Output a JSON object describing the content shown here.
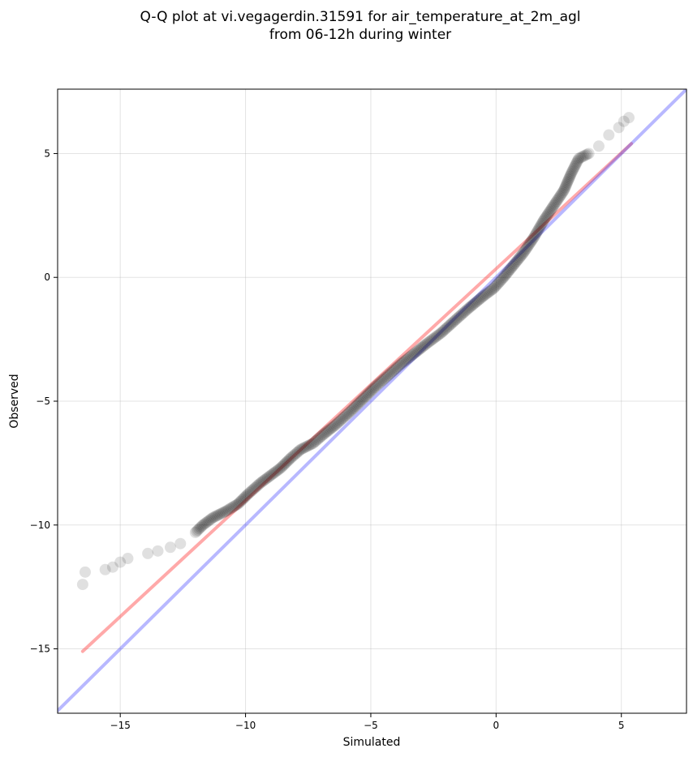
{
  "chart_data": {
    "type": "scatter",
    "title_line1": "Q-Q plot at vi.vegagerdin.31591 for air_temperature_at_2m_agl",
    "title_line2": "from 06-12h during winter",
    "xlabel": "Simulated",
    "ylabel": "Observed",
    "xlim": [
      -17.5,
      7.6
    ],
    "ylim": [
      -17.6,
      7.6
    ],
    "xticks": [
      -15,
      -10,
      -5,
      0,
      5
    ],
    "yticks": [
      5,
      0,
      -5,
      -10,
      -15
    ],
    "xtick_labels": [
      "−15",
      "−10",
      "−5",
      "0",
      "5"
    ],
    "ytick_labels": [
      "5",
      "0",
      "−5",
      "−10",
      "−15"
    ],
    "grid": true,
    "series": [
      {
        "color": "#000000",
        "opacity": 0.12,
        "anchors": [
          [
            -16.5,
            -12.4
          ],
          [
            -16.4,
            -11.9
          ],
          [
            -15.6,
            -11.8
          ],
          [
            -15.3,
            -11.7
          ],
          [
            -15.0,
            -11.5
          ],
          [
            -14.7,
            -11.35
          ],
          [
            -13.9,
            -11.15
          ],
          [
            -13.5,
            -11.05
          ],
          [
            -13.0,
            -10.9
          ],
          [
            -12.6,
            -10.75
          ],
          [
            -12.0,
            -10.3
          ],
          [
            -11.7,
            -10.0
          ],
          [
            -11.3,
            -9.7
          ],
          [
            -10.8,
            -9.45
          ],
          [
            -10.3,
            -9.15
          ],
          [
            -9.9,
            -8.75
          ],
          [
            -9.4,
            -8.3
          ],
          [
            -9.0,
            -8.0
          ],
          [
            -8.6,
            -7.7
          ],
          [
            -8.2,
            -7.3
          ],
          [
            -7.8,
            -6.95
          ],
          [
            -7.3,
            -6.7
          ],
          [
            -6.9,
            -6.35
          ],
          [
            -6.4,
            -5.95
          ],
          [
            -5.8,
            -5.4
          ],
          [
            -5.3,
            -4.9
          ],
          [
            -4.8,
            -4.4
          ],
          [
            -4.3,
            -3.95
          ],
          [
            -3.8,
            -3.5
          ],
          [
            -3.3,
            -3.1
          ],
          [
            -2.8,
            -2.7
          ],
          [
            -2.2,
            -2.25
          ],
          [
            -1.6,
            -1.7
          ],
          [
            -1.1,
            -1.25
          ],
          [
            -0.5,
            -0.75
          ],
          [
            -0.1,
            -0.45
          ],
          [
            0.3,
            0.0
          ],
          [
            0.7,
            0.5
          ],
          [
            1.1,
            1.0
          ],
          [
            1.5,
            1.6
          ],
          [
            1.9,
            2.3
          ],
          [
            2.3,
            2.9
          ],
          [
            2.7,
            3.5
          ],
          [
            3.0,
            4.2
          ],
          [
            3.3,
            4.8
          ],
          [
            3.7,
            5.0
          ],
          [
            4.1,
            5.3
          ],
          [
            4.5,
            5.75
          ],
          [
            4.9,
            6.05
          ],
          [
            5.1,
            6.3
          ],
          [
            5.3,
            6.45
          ]
        ]
      }
    ],
    "reference_lines": [
      {
        "kind": "fit",
        "color": "#ff4040",
        "opacity": 0.45,
        "x": [
          -16.5,
          5.4
        ],
        "y": [
          -15.1,
          5.4
        ]
      },
      {
        "kind": "identity",
        "color": "#3333ff",
        "opacity": 0.35,
        "x": [
          -17.5,
          7.6
        ],
        "y": [
          -17.5,
          7.6
        ]
      }
    ]
  }
}
